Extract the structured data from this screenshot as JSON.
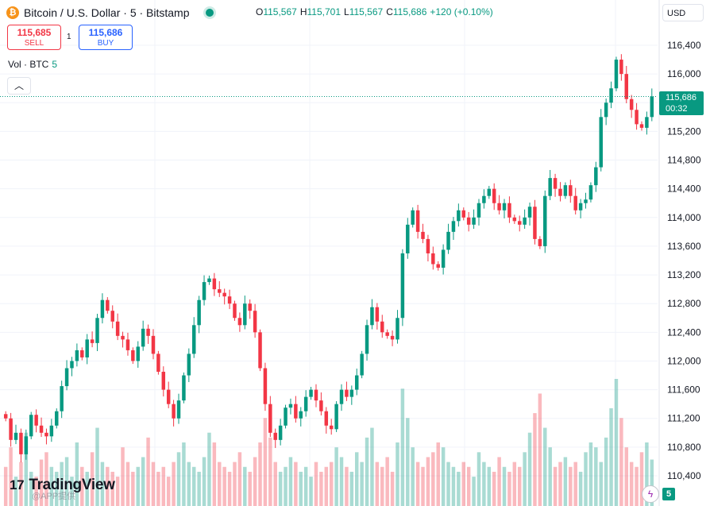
{
  "header": {
    "symbol_icon": "bitcoin-icon",
    "title": "Bitcoin / U.S. Dollar · 5 · Bitstamp",
    "ohlc": {
      "o_label": "O",
      "o_value": "115,567",
      "h_label": "H",
      "h_value": "115,701",
      "l_label": "L",
      "l_value": "115,567",
      "c_label": "C",
      "c_value": "115,686",
      "change": "+120 (+0.10%)"
    }
  },
  "trade": {
    "sell_price": "115,685",
    "sell_label": "SELL",
    "spread": "1",
    "buy_price": "115,686",
    "buy_label": "BUY"
  },
  "volume_legend": {
    "label": "Vol · BTC",
    "value": "5"
  },
  "currency": "USD",
  "last_price": {
    "price": "115,686",
    "countdown": "00:32"
  },
  "branding": {
    "logo": "TradingView",
    "watermark": "@APP提供"
  },
  "footer": {
    "alert_badge": "5"
  },
  "colors": {
    "up": "#089981",
    "down": "#f23645",
    "grid": "#f0f3fa",
    "text": "#131722"
  },
  "chart_data": {
    "type": "line",
    "xlabel": "",
    "ylabel": "",
    "y_ticks": [
      "110,400",
      "110,800",
      "111,200",
      "111,600",
      "112,000",
      "112,400",
      "112,800",
      "113,200",
      "113,600",
      "114,000",
      "114,400",
      "114,800",
      "115,200",
      "115,600",
      "116,000",
      "116,400"
    ],
    "ylim": [
      110100,
      116900
    ],
    "grid": true,
    "series": [
      {
        "values": [
          111200,
          110900,
          111000,
          110700,
          110950,
          111250,
          111100,
          111000,
          110950,
          111100,
          111300,
          111650,
          111900,
          112000,
          112150,
          112050,
          112300,
          112250,
          112600,
          112850,
          112700,
          112550,
          112350,
          112300,
          112150,
          112000,
          112200,
          112450,
          112350,
          112100,
          111850,
          111600,
          111400,
          111200,
          111450,
          111800,
          112100,
          112500,
          112850,
          113100,
          113150,
          113000,
          112950,
          112900,
          112800,
          112600,
          112500,
          112800,
          112700,
          112400,
          111900,
          111400,
          111000,
          110900,
          111100,
          111350,
          111400,
          111200,
          111300,
          111500,
          111600,
          111450,
          111300,
          111100,
          111050,
          111400,
          111600,
          111500,
          111600,
          111800,
          112100,
          112500,
          112750,
          112550,
          112400,
          112350,
          112300,
          112600,
          113500,
          113900,
          114100,
          113800,
          113700,
          113500,
          113350,
          113300,
          113550,
          113800,
          113950,
          114100,
          114000,
          113900,
          114000,
          114200,
          114300,
          114400,
          114200,
          114100,
          114200,
          114000,
          113950,
          113900,
          114000,
          114150,
          113700,
          113600,
          114300,
          114550,
          114400,
          114300,
          114450,
          114300,
          114100,
          114200,
          114250,
          114450,
          114700,
          115400,
          115600,
          115800,
          116200,
          116000,
          115650,
          115500,
          115300,
          115250,
          115400,
          115686
        ]
      }
    ],
    "volume": [
      80,
      120,
      60,
      90,
      150,
      70,
      60,
      95,
      110,
      80,
      70,
      90,
      100,
      60,
      130,
      80,
      70,
      110,
      160,
      90,
      80,
      70,
      60,
      120,
      90,
      70,
      80,
      100,
      140,
      90,
      70,
      80,
      60,
      90,
      110,
      130,
      90,
      80,
      70,
      100,
      150,
      130,
      90,
      80,
      70,
      90,
      110,
      80,
      70,
      100,
      130,
      180,
      140,
      90,
      70,
      80,
      100,
      90,
      70,
      80,
      60,
      90,
      70,
      80,
      90,
      120,
      100,
      80,
      70,
      110,
      90,
      140,
      160,
      90,
      80,
      100,
      70,
      130,
      240,
      180,
      120,
      90,
      80,
      100,
      110,
      130,
      120,
      90,
      80,
      70,
      90,
      80,
      60,
      110,
      90,
      80,
      70,
      100,
      80,
      70,
      90,
      80,
      110,
      150,
      190,
      230,
      160,
      120,
      80,
      90,
      100,
      80,
      90,
      70,
      110,
      130,
      120,
      90,
      140,
      200,
      260,
      180,
      120,
      90,
      80,
      110,
      130,
      95
    ]
  }
}
